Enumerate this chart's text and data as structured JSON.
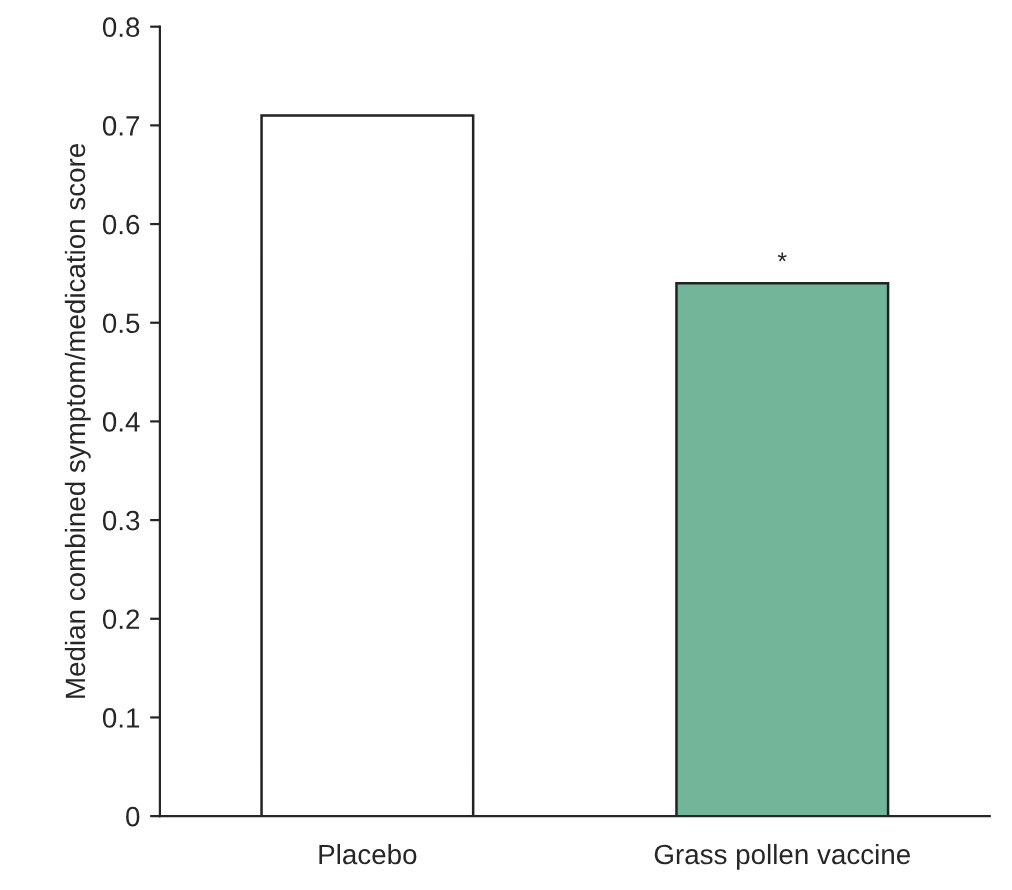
{
  "chart_data": {
    "type": "bar",
    "ylabel": "Median combined symptom/medication score",
    "categories": [
      "Placebo",
      "Grass pollen vaccine"
    ],
    "values": [
      0.71,
      0.54
    ],
    "colors": [
      "#ffffff",
      "#72b69a"
    ],
    "ylim": [
      0,
      0.8
    ],
    "yticks": [
      0,
      0.1,
      0.2,
      0.3,
      0.4,
      0.5,
      0.6,
      0.7,
      0.8
    ],
    "annotations": [
      {
        "text": "*",
        "x": "Grass pollen vaccine",
        "y": 0.54
      }
    ],
    "grid": false,
    "legend": false
  }
}
